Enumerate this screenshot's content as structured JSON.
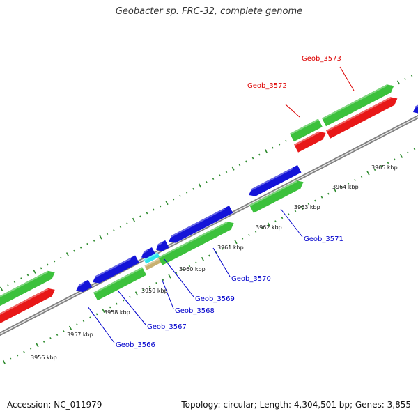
{
  "title": "Geobacter sp. FRC-32, complete genome",
  "footer": {
    "accession": "Accession: NC_011979",
    "summary": "Topology: circular; Length: 4,304,501 bp; Genes: 3,855"
  },
  "colors": {
    "background": "#ffffff",
    "backbone": "#808080",
    "tick": "#2e8b2e",
    "green_feature": "#3cc13c",
    "red_feature": "#e81818",
    "blue_feature": "#1414d8",
    "cyan_feature": "#2ee6ee",
    "tan_feature": "#c8b070",
    "label_blue": "#0000cc",
    "label_red": "#dd0000"
  },
  "scale_labels": [
    "3956 kbp",
    "3957 kbp",
    "3958 kbp",
    "3959 kbp",
    "3960 kbp",
    "3961 kbp",
    "3962 kbp",
    "3963 kbp",
    "3964 kbp",
    "3965 kbp"
  ],
  "gene_labels": [
    {
      "text": "Geob_3566",
      "color": "blue"
    },
    {
      "text": "Geob_3567",
      "color": "blue"
    },
    {
      "text": "Geob_3568",
      "color": "blue"
    },
    {
      "text": "Geob_3569",
      "color": "blue"
    },
    {
      "text": "Geob_3570",
      "color": "blue"
    },
    {
      "text": "Geob_3571",
      "color": "blue"
    },
    {
      "text": "Geob_3572",
      "color": "red"
    },
    {
      "text": "Geob_3573",
      "color": "red"
    }
  ],
  "features": [
    {
      "name": "feature-green-left",
      "color": "green"
    },
    {
      "name": "feature-red-left",
      "color": "red"
    },
    {
      "name": "feature-blue-3566",
      "color": "blue"
    },
    {
      "name": "feature-blue-3567",
      "color": "blue"
    },
    {
      "name": "feature-blue-3568",
      "color": "blue"
    },
    {
      "name": "feature-blue-3569",
      "color": "blue"
    },
    {
      "name": "feature-blue-3570",
      "color": "blue"
    },
    {
      "name": "feature-blue-3571",
      "color": "blue"
    },
    {
      "name": "feature-blue-right",
      "color": "blue"
    },
    {
      "name": "feature-green-main",
      "color": "green"
    },
    {
      "name": "feature-cyan",
      "color": "cyan"
    },
    {
      "name": "feature-tan",
      "color": "tan"
    },
    {
      "name": "feature-green-mid",
      "color": "green"
    },
    {
      "name": "feature-green-3571",
      "color": "green"
    },
    {
      "name": "feature-green-3572",
      "color": "green"
    },
    {
      "name": "feature-green-3573",
      "color": "green"
    },
    {
      "name": "feature-red-3572",
      "color": "red"
    },
    {
      "name": "feature-red-3573",
      "color": "red"
    }
  ]
}
